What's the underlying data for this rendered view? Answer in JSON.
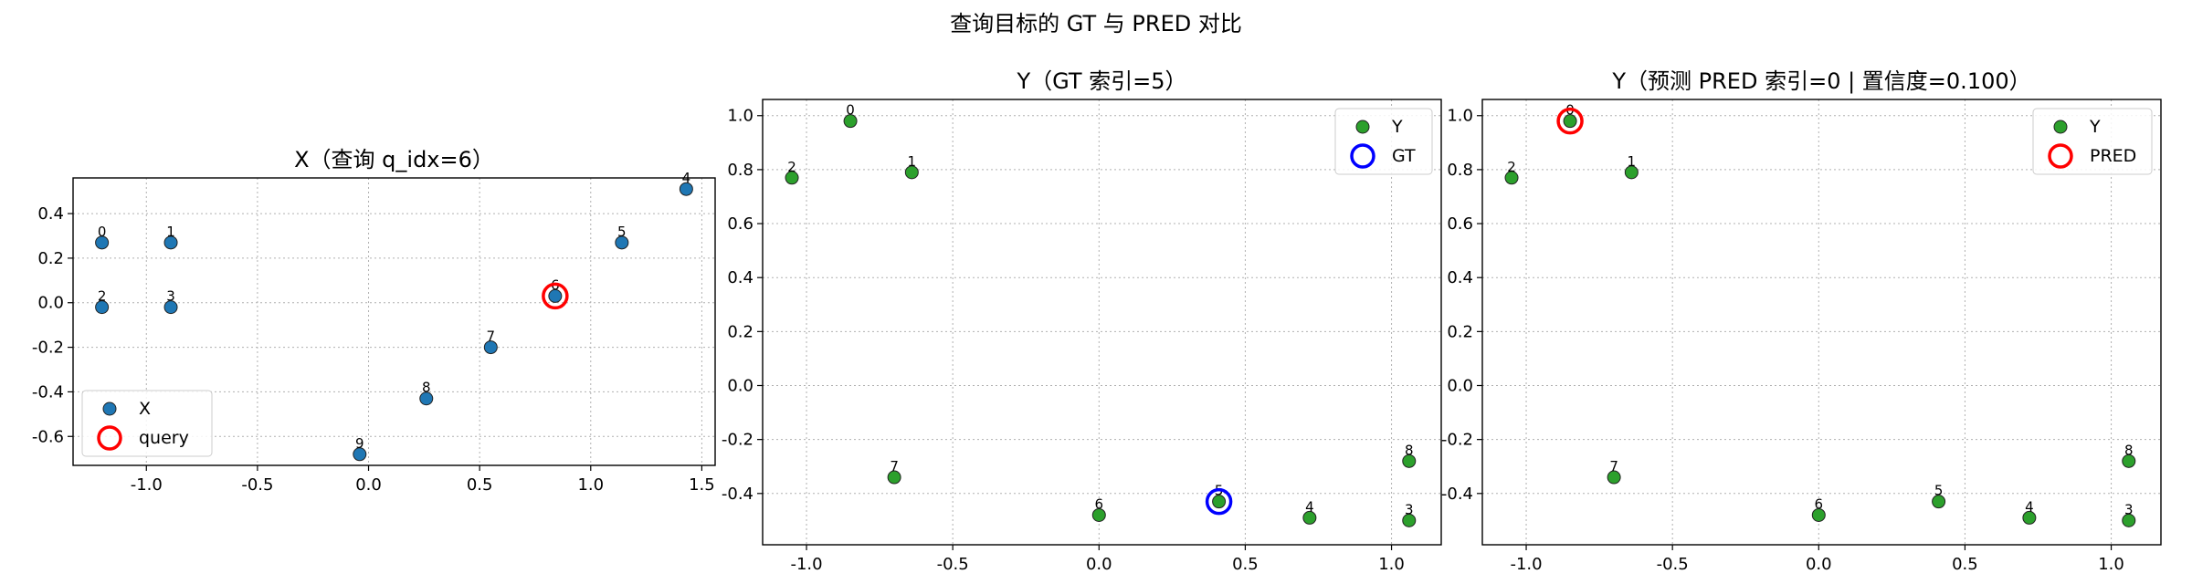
{
  "figure": {
    "suptitle": "查询目标的 GT 与 PRED 对比"
  },
  "colors": {
    "x_points": "#1f77b4",
    "y_points": "#2ca02c",
    "query_ring": "#ff0000",
    "gt_ring": "#0000ff",
    "pred_ring": "#ff0000",
    "grid": "#b0b0b0"
  },
  "chart_data": [
    {
      "type": "scatter",
      "title": "X（查询 q_idx=6）",
      "xlim": [
        -1.33,
        1.56
      ],
      "ylim": [
        -0.73,
        0.56
      ],
      "xticks": [
        -1.0,
        -0.5,
        0.0,
        0.5,
        1.0,
        1.5
      ],
      "yticks": [
        -0.6,
        -0.4,
        -0.2,
        0.0,
        0.2,
        0.4
      ],
      "xtick_labels": [
        "-1.0",
        "-0.5",
        "0.0",
        "0.5",
        "1.0",
        "1.5"
      ],
      "ytick_labels": [
        "-0.6",
        "-0.4",
        "-0.2",
        "0.0",
        "0.2",
        "0.4"
      ],
      "grid": true,
      "legend_position": "lower-left",
      "legend": [
        "X",
        "query"
      ],
      "series": [
        {
          "name": "X",
          "color": "#1f77b4",
          "points": [
            {
              "label": "0",
              "x": -1.2,
              "y": 0.27
            },
            {
              "label": "1",
              "x": -0.89,
              "y": 0.27
            },
            {
              "label": "2",
              "x": -1.2,
              "y": -0.02
            },
            {
              "label": "3",
              "x": -0.89,
              "y": -0.02
            },
            {
              "label": "4",
              "x": 1.43,
              "y": 0.51
            },
            {
              "label": "5",
              "x": 1.14,
              "y": 0.27
            },
            {
              "label": "6",
              "x": 0.84,
              "y": 0.03
            },
            {
              "label": "7",
              "x": 0.55,
              "y": -0.2
            },
            {
              "label": "8",
              "x": 0.26,
              "y": -0.43
            },
            {
              "label": "9",
              "x": -0.04,
              "y": -0.68
            }
          ]
        }
      ],
      "highlight": {
        "name": "query",
        "color": "#ff0000",
        "x": 0.84,
        "y": 0.03
      }
    },
    {
      "type": "scatter",
      "title": "Y（GT 索引=5）",
      "xlim": [
        -1.15,
        1.17
      ],
      "ylim": [
        -0.59,
        1.06
      ],
      "xticks": [
        -1.0,
        -0.5,
        0.0,
        0.5,
        1.0
      ],
      "yticks": [
        -0.4,
        -0.2,
        0.0,
        0.2,
        0.4,
        0.6,
        0.8,
        1.0
      ],
      "xtick_labels": [
        "-1.0",
        "-0.5",
        "0.0",
        "0.5",
        "1.0"
      ],
      "ytick_labels": [
        "-0.4",
        "-0.2",
        "0.0",
        "0.2",
        "0.4",
        "0.6",
        "0.8",
        "1.0"
      ],
      "grid": true,
      "legend_position": "upper-right",
      "legend": [
        "Y",
        "GT"
      ],
      "series": [
        {
          "name": "Y",
          "color": "#2ca02c",
          "points": [
            {
              "label": "0",
              "x": -0.85,
              "y": 0.98
            },
            {
              "label": "1",
              "x": -0.64,
              "y": 0.79
            },
            {
              "label": "2",
              "x": -1.05,
              "y": 0.77
            },
            {
              "label": "3",
              "x": 1.06,
              "y": -0.5
            },
            {
              "label": "4",
              "x": 0.72,
              "y": -0.49
            },
            {
              "label": "5",
              "x": 0.41,
              "y": -0.43
            },
            {
              "label": "6",
              "x": 0.0,
              "y": -0.48
            },
            {
              "label": "7",
              "x": -0.7,
              "y": -0.34
            },
            {
              "label": "8",
              "x": 1.06,
              "y": -0.28
            }
          ]
        }
      ],
      "highlight": {
        "name": "GT",
        "color": "#0000ff",
        "x": 0.41,
        "y": -0.43
      }
    },
    {
      "type": "scatter",
      "title": "Y（预测 PRED 索引=0 | 置信度=0.100）",
      "xlim": [
        -1.15,
        1.17
      ],
      "ylim": [
        -0.59,
        1.06
      ],
      "xticks": [
        -1.0,
        -0.5,
        0.0,
        0.5,
        1.0
      ],
      "yticks": [
        -0.4,
        -0.2,
        0.0,
        0.2,
        0.4,
        0.6,
        0.8,
        1.0
      ],
      "xtick_labels": [
        "-1.0",
        "-0.5",
        "0.0",
        "0.5",
        "1.0"
      ],
      "ytick_labels": [
        "-0.4",
        "-0.2",
        "0.0",
        "0.2",
        "0.4",
        "0.6",
        "0.8",
        "1.0"
      ],
      "grid": true,
      "legend_position": "upper-right",
      "legend": [
        "Y",
        "PRED"
      ],
      "series": [
        {
          "name": "Y",
          "color": "#2ca02c",
          "points": [
            {
              "label": "0",
              "x": -0.85,
              "y": 0.98
            },
            {
              "label": "1",
              "x": -0.64,
              "y": 0.79
            },
            {
              "label": "2",
              "x": -1.05,
              "y": 0.77
            },
            {
              "label": "3",
              "x": 1.06,
              "y": -0.5
            },
            {
              "label": "4",
              "x": 0.72,
              "y": -0.49
            },
            {
              "label": "5",
              "x": 0.41,
              "y": -0.43
            },
            {
              "label": "6",
              "x": 0.0,
              "y": -0.48
            },
            {
              "label": "7",
              "x": -0.7,
              "y": -0.34
            },
            {
              "label": "8",
              "x": 1.06,
              "y": -0.28
            }
          ]
        }
      ],
      "highlight": {
        "name": "PRED",
        "color": "#ff0000",
        "x": -0.85,
        "y": 0.98
      }
    }
  ]
}
